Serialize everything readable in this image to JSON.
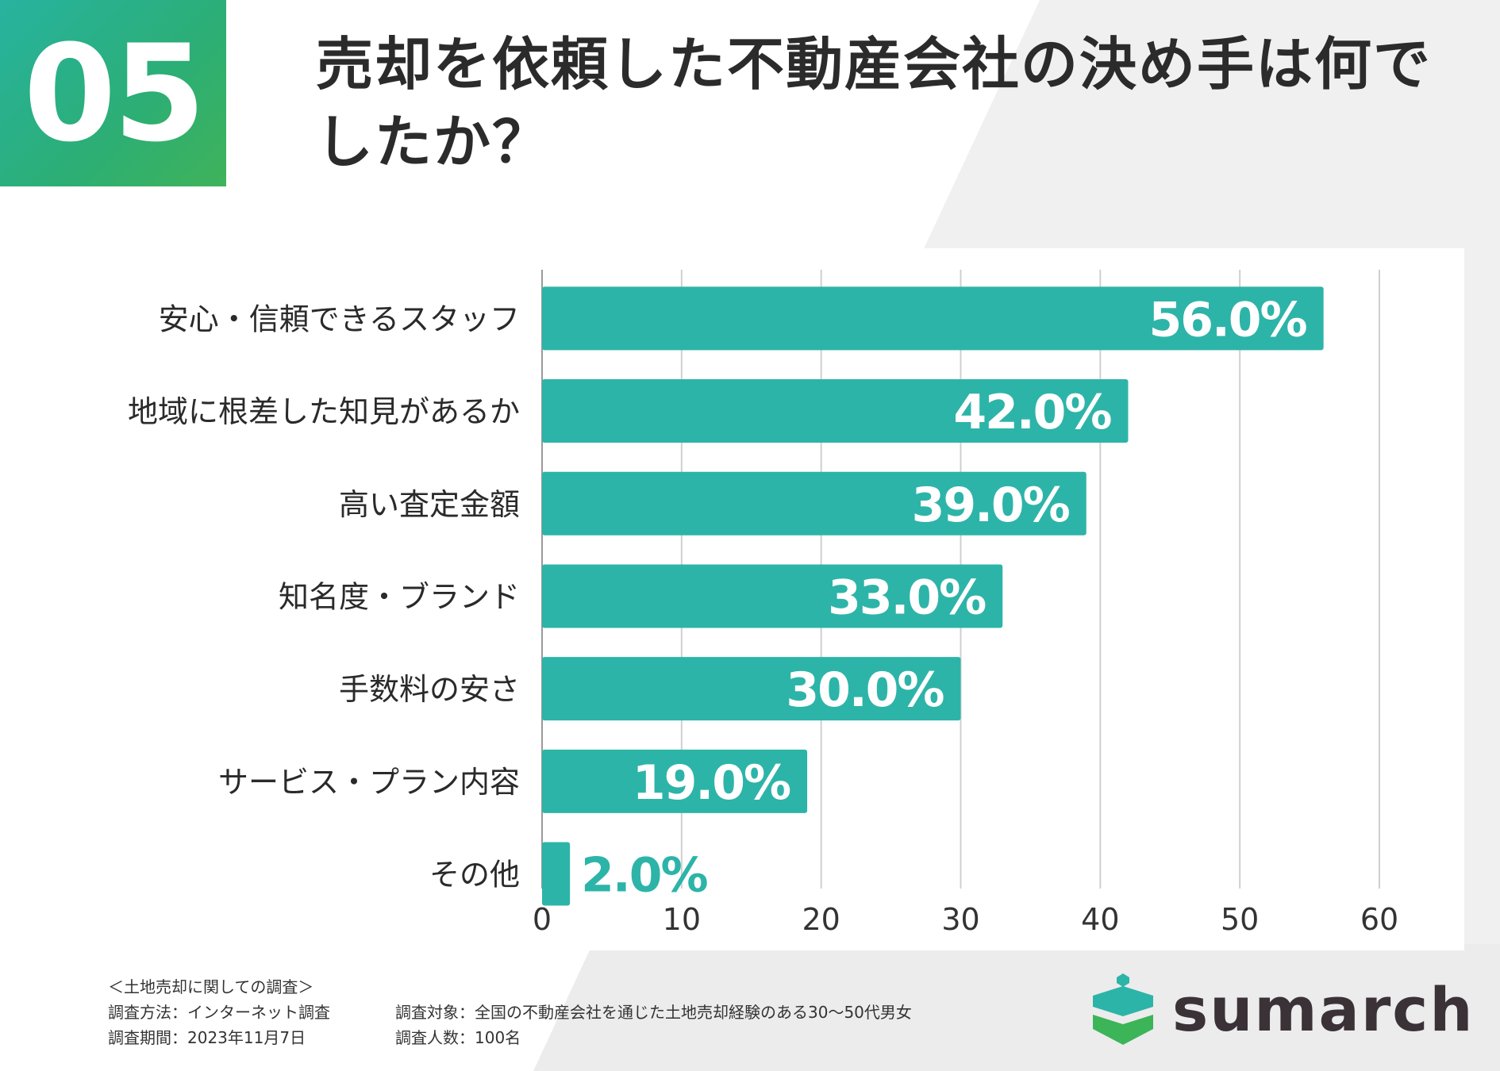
{
  "header": {
    "number": "05",
    "title": "売却を依頼した不動産会社の決め手は何でしたか？"
  },
  "chart_data": {
    "type": "bar",
    "orientation": "horizontal",
    "categories": [
      "安心・信頼できるスタッフ",
      "地域に根差した知見があるか",
      "高い査定金額",
      "知名度・ブランド",
      "手数料の安さ",
      "サービス・プラン内容",
      "その他"
    ],
    "values": [
      56.0,
      42.0,
      39.0,
      33.0,
      30.0,
      19.0,
      2.0
    ],
    "value_labels": [
      "56.0%",
      "42.0%",
      "39.0%",
      "33.0%",
      "30.0%",
      "19.0%",
      "2.0%"
    ],
    "x_ticks": [
      "0",
      "10",
      "20",
      "30",
      "40",
      "50",
      "60"
    ],
    "xlim": [
      0,
      60
    ],
    "grid": true,
    "bar_color": "#2db4a8"
  },
  "footer": {
    "survey_title": "＜土地売却に関しての調査＞",
    "method": "調査方法：インターネット調査",
    "target": "調査対象：全国の不動産会社を通じた土地売却経験のある30〜50代男女",
    "period": "調査期間：2023年11月7日",
    "count": "調査人数：100名"
  },
  "logo": {
    "text": "sumarch",
    "icon": "house-shield-icon",
    "colors": [
      "#2db4a8",
      "#3cb458"
    ]
  }
}
